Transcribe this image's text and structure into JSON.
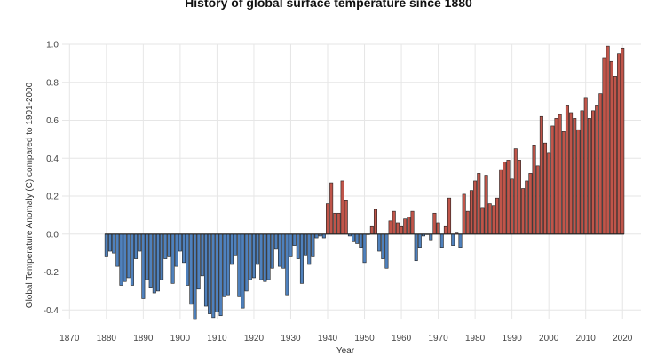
{
  "chart_data": {
    "type": "bar",
    "title": "History of global surface temperature since 1880",
    "xlabel": "Year",
    "ylabel": "Global Temperature Anomaly (C) compared to 1901-2000",
    "xlim": [
      1868,
      2025
    ],
    "ylim": [
      -0.45,
      1.0
    ],
    "x_ticks": [
      1870,
      1880,
      1890,
      1900,
      1910,
      1920,
      1930,
      1940,
      1950,
      1960,
      1970,
      1980,
      1990,
      2000,
      2010,
      2020
    ],
    "y_ticks": [
      -0.4,
      -0.2,
      0.0,
      0.2,
      0.4,
      0.6,
      0.8,
      1.0
    ],
    "y_tick_labels": [
      "-0.4",
      "-0.2",
      "0.0",
      "0.2",
      "0.4",
      "0.6",
      "0.8",
      "1.0"
    ],
    "grid": true,
    "legend": "none",
    "colors": {
      "positive": "#c0554a",
      "negative": "#4f81bd",
      "bar_edge": "#222222"
    },
    "x": [
      1880,
      1881,
      1882,
      1883,
      1884,
      1885,
      1886,
      1887,
      1888,
      1889,
      1890,
      1891,
      1892,
      1893,
      1894,
      1895,
      1896,
      1897,
      1898,
      1899,
      1900,
      1901,
      1902,
      1903,
      1904,
      1905,
      1906,
      1907,
      1908,
      1909,
      1910,
      1911,
      1912,
      1913,
      1914,
      1915,
      1916,
      1917,
      1918,
      1919,
      1920,
      1921,
      1922,
      1923,
      1924,
      1925,
      1926,
      1927,
      1928,
      1929,
      1930,
      1931,
      1932,
      1933,
      1934,
      1935,
      1936,
      1937,
      1938,
      1939,
      1940,
      1941,
      1942,
      1943,
      1944,
      1945,
      1946,
      1947,
      1948,
      1949,
      1950,
      1951,
      1952,
      1953,
      1954,
      1955,
      1956,
      1957,
      1958,
      1959,
      1960,
      1961,
      1962,
      1963,
      1964,
      1965,
      1966,
      1967,
      1968,
      1969,
      1970,
      1971,
      1972,
      1973,
      1974,
      1975,
      1976,
      1977,
      1978,
      1979,
      1980,
      1981,
      1982,
      1983,
      1984,
      1985,
      1986,
      1987,
      1988,
      1989,
      1990,
      1991,
      1992,
      1993,
      1994,
      1995,
      1996,
      1997,
      1998,
      1999,
      2000,
      2001,
      2002,
      2003,
      2004,
      2005,
      2006,
      2007,
      2008,
      2009,
      2010,
      2011,
      2012,
      2013,
      2014,
      2015,
      2016,
      2017,
      2018,
      2019,
      2020
    ],
    "values": [
      -0.12,
      -0.09,
      -0.1,
      -0.17,
      -0.27,
      -0.25,
      -0.23,
      -0.27,
      -0.13,
      -0.09,
      -0.34,
      -0.24,
      -0.28,
      -0.31,
      -0.3,
      -0.24,
      -0.13,
      -0.12,
      -0.26,
      -0.17,
      -0.09,
      -0.15,
      -0.27,
      -0.37,
      -0.45,
      -0.29,
      -0.22,
      -0.38,
      -0.42,
      -0.44,
      -0.41,
      -0.43,
      -0.33,
      -0.32,
      -0.16,
      -0.11,
      -0.33,
      -0.39,
      -0.3,
      -0.24,
      -0.23,
      -0.16,
      -0.24,
      -0.25,
      -0.24,
      -0.18,
      -0.08,
      -0.17,
      -0.18,
      -0.32,
      -0.12,
      -0.06,
      -0.13,
      -0.26,
      -0.11,
      -0.16,
      -0.12,
      -0.02,
      -0.01,
      -0.02,
      0.16,
      0.27,
      0.11,
      0.11,
      0.28,
      0.18,
      -0.01,
      -0.04,
      -0.05,
      -0.07,
      -0.15,
      0.0,
      0.04,
      0.13,
      -0.09,
      -0.13,
      -0.18,
      0.07,
      0.12,
      0.06,
      0.04,
      0.08,
      0.09,
      0.12,
      -0.14,
      -0.07,
      -0.01,
      0.0,
      -0.03,
      0.11,
      0.06,
      -0.07,
      0.04,
      0.19,
      -0.06,
      0.01,
      -0.07,
      0.21,
      0.12,
      0.23,
      0.28,
      0.32,
      0.14,
      0.31,
      0.16,
      0.15,
      0.19,
      0.34,
      0.38,
      0.39,
      0.29,
      0.45,
      0.39,
      0.24,
      0.28,
      0.32,
      0.47,
      0.36,
      0.62,
      0.48,
      0.43,
      0.57,
      0.61,
      0.63,
      0.54,
      0.68,
      0.64,
      0.61,
      0.55,
      0.65,
      0.72,
      0.61,
      0.65,
      0.68,
      0.74,
      0.93,
      0.99,
      0.91,
      0.83,
      0.95,
      0.98
    ]
  }
}
